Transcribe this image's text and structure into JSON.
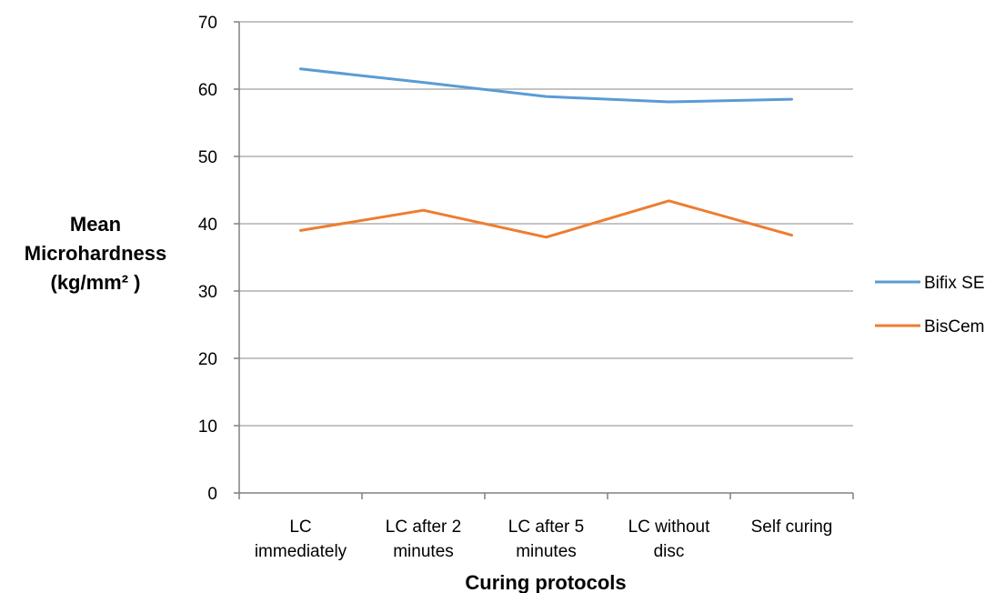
{
  "chart_data": {
    "type": "line",
    "categories": [
      [
        "LC",
        "immediately"
      ],
      [
        "LC after 2",
        "minutes"
      ],
      [
        "LC after 5",
        "minutes"
      ],
      [
        "LC without",
        "disc"
      ],
      [
        "Self curing"
      ]
    ],
    "series": [
      {
        "name": "Bifix SE",
        "values": [
          63,
          61,
          58.9,
          58.1,
          58.5
        ],
        "color": "#5B9BD5"
      },
      {
        "name": "BisCem",
        "values": [
          39,
          42,
          38,
          43.4,
          38.3
        ],
        "color": "#ED7D31"
      }
    ],
    "xlabel": "Curing protocols",
    "ylabel": [
      "Mean",
      "Microhardness",
      "(kg/mm² )"
    ],
    "ylim": [
      0,
      70
    ],
    "yticks": [
      0,
      10,
      20,
      30,
      40,
      50,
      60,
      70
    ],
    "grid": true,
    "legend_position": "right"
  }
}
